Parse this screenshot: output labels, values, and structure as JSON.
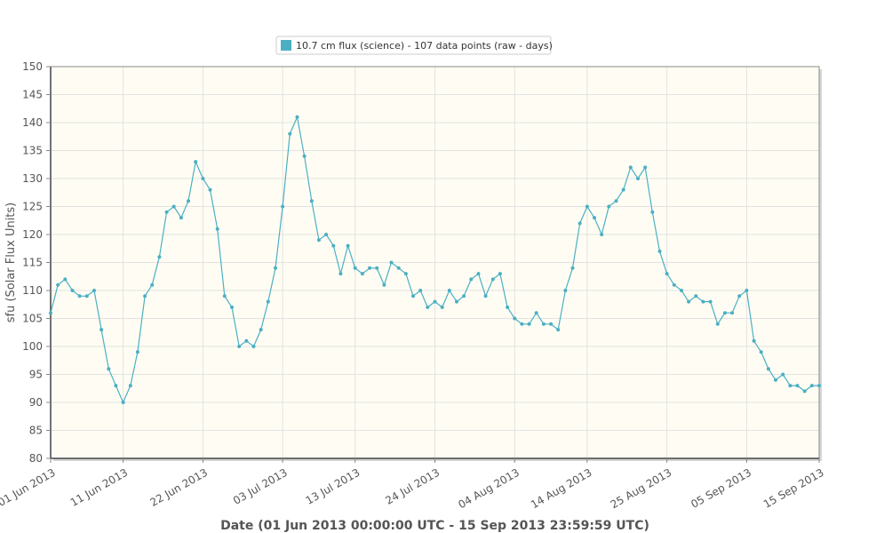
{
  "chart_data": {
    "type": "line",
    "title": "",
    "xlabel": "Date (01 Jun 2013 00:00:00 UTC - 15 Sep 2013 23:59:59 UTC)",
    "ylabel": "sfu (Solar Flux Units)",
    "ylim": [
      80,
      150
    ],
    "yticks": [
      80,
      85,
      90,
      95,
      100,
      105,
      110,
      115,
      120,
      125,
      130,
      135,
      140,
      145,
      150
    ],
    "xlim": [
      "2013-06-01",
      "2013-09-15"
    ],
    "xticks": [
      {
        "date": "2013-06-01",
        "label": "01 Jun 2013"
      },
      {
        "date": "2013-06-11",
        "label": "11 Jun 2013"
      },
      {
        "date": "2013-06-22",
        "label": "22 Jun 2013"
      },
      {
        "date": "2013-07-03",
        "label": "03 Jul 2013"
      },
      {
        "date": "2013-07-13",
        "label": "13 Jul 2013"
      },
      {
        "date": "2013-07-24",
        "label": "24 Jul 2013"
      },
      {
        "date": "2013-08-04",
        "label": "04 Aug 2013"
      },
      {
        "date": "2013-08-14",
        "label": "14 Aug 2013"
      },
      {
        "date": "2013-08-25",
        "label": "25 Aug 2013"
      },
      {
        "date": "2013-09-05",
        "label": "05 Sep 2013"
      },
      {
        "date": "2013-09-15",
        "label": "15 Sep 2013"
      }
    ],
    "grid": true,
    "legend_position": "top-center",
    "colors": {
      "series": "#4bafc4",
      "plot_background": "#fffdf3",
      "grid": "#e2e2e2"
    },
    "series": [
      {
        "name": "10.7 cm flux (science) - 107 data points (raw - days)",
        "x": [
          "2013-06-01",
          "2013-06-02",
          "2013-06-03",
          "2013-06-04",
          "2013-06-05",
          "2013-06-06",
          "2013-06-07",
          "2013-06-08",
          "2013-06-09",
          "2013-06-10",
          "2013-06-11",
          "2013-06-12",
          "2013-06-13",
          "2013-06-14",
          "2013-06-15",
          "2013-06-16",
          "2013-06-17",
          "2013-06-18",
          "2013-06-19",
          "2013-06-20",
          "2013-06-21",
          "2013-06-22",
          "2013-06-23",
          "2013-06-24",
          "2013-06-25",
          "2013-06-26",
          "2013-06-27",
          "2013-06-28",
          "2013-06-29",
          "2013-06-30",
          "2013-07-01",
          "2013-07-02",
          "2013-07-03",
          "2013-07-04",
          "2013-07-05",
          "2013-07-06",
          "2013-07-07",
          "2013-07-08",
          "2013-07-09",
          "2013-07-10",
          "2013-07-11",
          "2013-07-12",
          "2013-07-13",
          "2013-07-14",
          "2013-07-15",
          "2013-07-16",
          "2013-07-17",
          "2013-07-18",
          "2013-07-19",
          "2013-07-20",
          "2013-07-21",
          "2013-07-22",
          "2013-07-23",
          "2013-07-24",
          "2013-07-25",
          "2013-07-26",
          "2013-07-27",
          "2013-07-28",
          "2013-07-29",
          "2013-07-30",
          "2013-07-31",
          "2013-08-01",
          "2013-08-02",
          "2013-08-03",
          "2013-08-04",
          "2013-08-05",
          "2013-08-06",
          "2013-08-07",
          "2013-08-08",
          "2013-08-09",
          "2013-08-10",
          "2013-08-11",
          "2013-08-12",
          "2013-08-13",
          "2013-08-14",
          "2013-08-15",
          "2013-08-16",
          "2013-08-17",
          "2013-08-18",
          "2013-08-19",
          "2013-08-20",
          "2013-08-21",
          "2013-08-22",
          "2013-08-23",
          "2013-08-24",
          "2013-08-25",
          "2013-08-26",
          "2013-08-27",
          "2013-08-28",
          "2013-08-29",
          "2013-08-30",
          "2013-08-31",
          "2013-09-01",
          "2013-09-02",
          "2013-09-03",
          "2013-09-04",
          "2013-09-05",
          "2013-09-06",
          "2013-09-07",
          "2013-09-08",
          "2013-09-09",
          "2013-09-10",
          "2013-09-11",
          "2013-09-12",
          "2013-09-13",
          "2013-09-14",
          "2013-09-15"
        ],
        "values": [
          106,
          111,
          112,
          110,
          109,
          109,
          110,
          103,
          96,
          93,
          90,
          93,
          99,
          109,
          111,
          116,
          124,
          125,
          123,
          126,
          133,
          130,
          128,
          121,
          109,
          107,
          100,
          101,
          100,
          103,
          108,
          114,
          125,
          138,
          141,
          134,
          126,
          119,
          120,
          118,
          113,
          118,
          114,
          113,
          114,
          114,
          111,
          115,
          114,
          113,
          109,
          110,
          107,
          108,
          107,
          110,
          108,
          109,
          112,
          113,
          109,
          112,
          113,
          107,
          105,
          104,
          104,
          106,
          104,
          104,
          103,
          110,
          114,
          122,
          125,
          123,
          120,
          125,
          126,
          128,
          132,
          130,
          132,
          124,
          117,
          113,
          111,
          110,
          108,
          109,
          108,
          108,
          104,
          106,
          106,
          109,
          110,
          101,
          99,
          96,
          94,
          95,
          93,
          93,
          92,
          93,
          93
        ]
      }
    ]
  }
}
